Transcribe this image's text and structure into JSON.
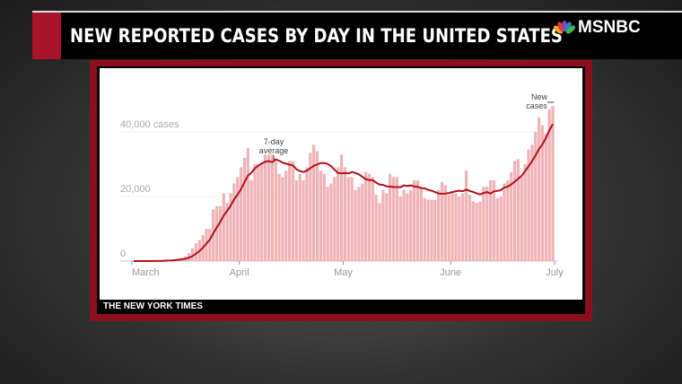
{
  "header": {
    "title": "NEW REPORTED CASES BY DAY IN THE UNITED STATES",
    "network": "MSNBC"
  },
  "source_label": "THE NEW YORK TIMES",
  "colors": {
    "accent": "#a8152a",
    "bar": "#f0b3b6",
    "line": "#b0121e"
  },
  "chart_data": {
    "type": "bar",
    "title": "New reported cases by day in the United States",
    "xlabel": "",
    "ylabel": "cases",
    "ylim": [
      0,
      50000
    ],
    "y_ticks": [
      {
        "value": 0,
        "label": "0"
      },
      {
        "value": 20000,
        "label": "20,000"
      },
      {
        "value": 40000,
        "label": "40,000 cases"
      }
    ],
    "x_ticks": [
      {
        "day": 0,
        "label": "March"
      },
      {
        "day": 31,
        "label": "April"
      },
      {
        "day": 61,
        "label": "May"
      },
      {
        "day": 92,
        "label": "June"
      },
      {
        "day": 122,
        "label": "July"
      }
    ],
    "start_date": "March 1",
    "annotations": {
      "average": "7-day",
      "average2": "average",
      "bars": "New",
      "bars2": "cases"
    },
    "series": [
      {
        "name": "New cases",
        "type": "bar",
        "values": [
          0,
          0,
          0,
          0,
          0,
          0,
          100,
          100,
          200,
          300,
          400,
          500,
          600,
          800,
          1000,
          1500,
          2500,
          4000,
          5500,
          6500,
          8000,
          10000,
          10000,
          16000,
          17000,
          17000,
          21000,
          18000,
          21000,
          24000,
          26000,
          29000,
          32000,
          35000,
          25000,
          30000,
          30000,
          30500,
          33000,
          33000,
          33000,
          31000,
          27000,
          26000,
          28000,
          31000,
          31000,
          25000,
          27000,
          25000,
          29000,
          33500,
          36000,
          34000,
          28000,
          27000,
          23000,
          24000,
          26000,
          29000,
          33000,
          29000,
          26000,
          26000,
          22000,
          23000,
          24000,
          27500,
          27000,
          26000,
          20500,
          18000,
          22000,
          21000,
          27000,
          26000,
          26000,
          20000,
          22000,
          21000,
          22000,
          25000,
          25000,
          23000,
          19500,
          19000,
          19000,
          19000,
          22000,
          24500,
          23500,
          20500,
          21000,
          21000,
          20000,
          21000,
          28000,
          20500,
          18500,
          18000,
          18500,
          23000,
          23000,
          25000,
          25000,
          19500,
          20000,
          24000,
          25000,
          27500,
          31000,
          31500,
          26000,
          30000,
          34500,
          36000,
          40000,
          44500,
          42000,
          39500,
          47000,
          48000
        ]
      },
      {
        "name": "7-day average",
        "type": "line",
        "derived": "7-day rolling mean of new cases"
      }
    ]
  }
}
